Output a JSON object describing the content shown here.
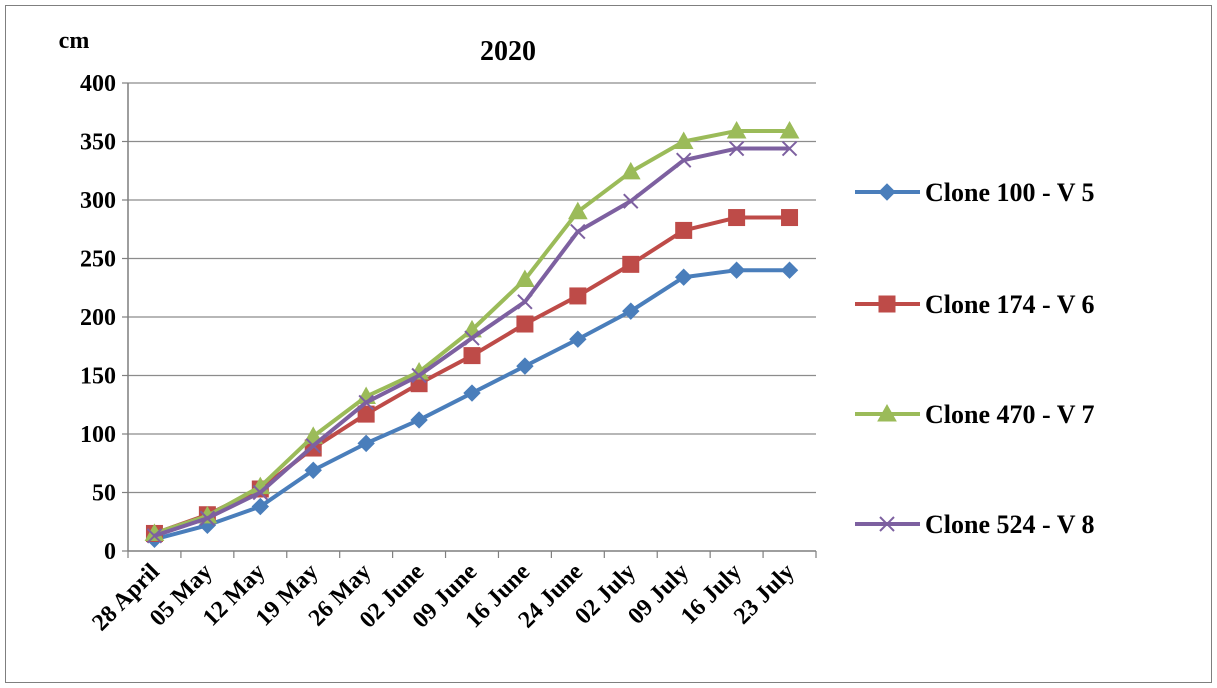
{
  "chart_data": {
    "type": "line",
    "title": "2020",
    "ylabel": "cm",
    "xlabel": "",
    "ylim": [
      0,
      400
    ],
    "yticks": [
      0,
      50,
      100,
      150,
      200,
      250,
      300,
      350,
      400
    ],
    "grid": "horizontal",
    "legend_position": "right",
    "categories": [
      "28 April",
      "05 May",
      "12 May",
      "19 May",
      "26 May",
      "02 June",
      "09 June",
      "16 June",
      "24 June",
      "02 July",
      "09 July",
      "16 July",
      "23 July"
    ],
    "series": [
      {
        "name": "Clone 100 - V 5",
        "color": "#4a7ebb",
        "marker": "diamond",
        "values": [
          10,
          22,
          38,
          69,
          92,
          112,
          135,
          158,
          181,
          205,
          234,
          240,
          240
        ]
      },
      {
        "name": "Clone 174 - V 6",
        "color": "#be4b48",
        "marker": "square",
        "values": [
          15,
          31,
          53,
          88,
          117,
          143,
          167,
          194,
          218,
          245,
          274,
          285,
          285
        ]
      },
      {
        "name": "Clone 470 - V 7",
        "color": "#9bbb59",
        "marker": "triangle",
        "values": [
          15,
          30,
          55,
          98,
          132,
          153,
          189,
          232,
          290,
          324,
          350,
          359,
          359
        ]
      },
      {
        "name": "Clone 524 - V 8",
        "color": "#7d60a0",
        "marker": "x",
        "values": [
          13,
          28,
          50,
          90,
          127,
          150,
          182,
          213,
          273,
          299,
          334,
          344,
          344
        ]
      }
    ]
  }
}
